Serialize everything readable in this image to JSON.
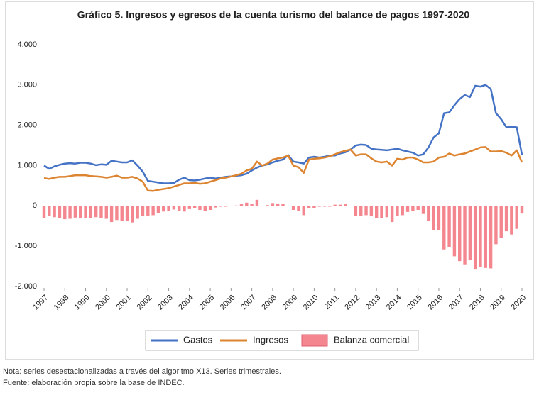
{
  "chart_data": {
    "type": "combo",
    "title": "Gráfico 5. Ingresos y egresos de la cuenta turismo del balance de pagos 1997-2020",
    "notes": [
      "Nota: series desestacionalizadas a través del algoritmo X13. Series trimestrales.",
      "Fuente: elaboración propia sobre la base de INDEC."
    ],
    "x": [
      1997,
      1997.25,
      1997.5,
      1997.75,
      1998,
      1998.25,
      1998.5,
      1998.75,
      1999,
      1999.25,
      1999.5,
      1999.75,
      2000,
      2000.25,
      2000.5,
      2000.75,
      2001,
      2001.25,
      2001.5,
      2001.75,
      2002,
      2002.25,
      2002.5,
      2002.75,
      2003,
      2003.25,
      2003.5,
      2003.75,
      2004,
      2004.25,
      2004.5,
      2004.75,
      2005,
      2005.25,
      2005.5,
      2005.75,
      2006,
      2006.25,
      2006.5,
      2006.75,
      2007,
      2007.25,
      2007.5,
      2007.75,
      2008,
      2008.25,
      2008.5,
      2008.75,
      2009,
      2009.25,
      2009.5,
      2009.75,
      2010,
      2010.25,
      2010.5,
      2010.75,
      2011,
      2011.25,
      2011.5,
      2011.75,
      2012,
      2012.25,
      2012.5,
      2012.75,
      2013,
      2013.25,
      2013.5,
      2013.75,
      2014,
      2014.25,
      2014.5,
      2014.75,
      2015,
      2015.25,
      2015.5,
      2015.75,
      2016,
      2016.25,
      2016.5,
      2016.75,
      2017,
      2017.25,
      2017.5,
      2017.75,
      2018,
      2018.25,
      2018.5,
      2018.75,
      2019,
      2019.25,
      2019.5,
      2019.75,
      2020
    ],
    "series": [
      {
        "name": "Gastos",
        "type": "line",
        "color": "#4472c4",
        "values": [
          1000,
          920,
          980,
          1020,
          1050,
          1060,
          1050,
          1070,
          1070,
          1050,
          1010,
          1030,
          1020,
          1120,
          1100,
          1080,
          1080,
          1130,
          1000,
          850,
          620,
          600,
          580,
          560,
          560,
          570,
          650,
          700,
          640,
          630,
          650,
          680,
          700,
          680,
          700,
          720,
          730,
          750,
          760,
          800,
          880,
          950,
          1000,
          1030,
          1080,
          1120,
          1150,
          1260,
          1100,
          1080,
          1050,
          1200,
          1220,
          1200,
          1220,
          1250,
          1250,
          1300,
          1330,
          1400,
          1500,
          1520,
          1510,
          1420,
          1400,
          1390,
          1380,
          1400,
          1420,
          1380,
          1350,
          1320,
          1250,
          1280,
          1450,
          1700,
          1800,
          2300,
          2320,
          2500,
          2650,
          2750,
          2700,
          2980,
          2960,
          3000,
          2900,
          2300,
          2150,
          1950,
          1960,
          1950,
          1270
        ]
      },
      {
        "name": "Ingresos",
        "type": "line",
        "color": "#dd8430",
        "values": [
          690,
          670,
          700,
          720,
          720,
          740,
          760,
          760,
          760,
          740,
          730,
          720,
          700,
          720,
          750,
          700,
          700,
          720,
          680,
          600,
          380,
          370,
          400,
          420,
          440,
          480,
          520,
          560,
          560,
          570,
          550,
          560,
          600,
          640,
          680,
          700,
          730,
          760,
          800,
          880,
          920,
          1100,
          1000,
          1050,
          1150,
          1180,
          1200,
          1250,
          1000,
          960,
          820,
          1150,
          1170,
          1180,
          1200,
          1230,
          1280,
          1330,
          1370,
          1400,
          1250,
          1280,
          1280,
          1180,
          1100,
          1080,
          1100,
          1000,
          1170,
          1150,
          1200,
          1200,
          1150,
          1080,
          1080,
          1100,
          1200,
          1220,
          1300,
          1250,
          1280,
          1300,
          1350,
          1400,
          1450,
          1460,
          1350,
          1350,
          1360,
          1320,
          1250,
          1380,
          1080
        ]
      },
      {
        "name": "Balanza comercial",
        "type": "bar",
        "color": "#f4868f",
        "values": [
          -310,
          -250,
          -280,
          -300,
          -330,
          -320,
          -290,
          -310,
          -310,
          -310,
          -280,
          -310,
          -320,
          -400,
          -350,
          -380,
          -380,
          -410,
          -320,
          -250,
          -240,
          -230,
          -180,
          -140,
          -120,
          -90,
          -130,
          -140,
          -80,
          -60,
          -100,
          -120,
          -100,
          -40,
          -20,
          -20,
          0,
          10,
          40,
          80,
          40,
          150,
          0,
          20,
          70,
          60,
          50,
          0,
          -100,
          -120,
          -230,
          -50,
          -50,
          -20,
          -20,
          -20,
          30,
          30,
          40,
          0,
          -250,
          -240,
          -230,
          -240,
          -300,
          -310,
          -280,
          -400,
          -250,
          -230,
          -150,
          -120,
          -100,
          -200,
          -370,
          -600,
          -600,
          -1080,
          -1020,
          -1250,
          -1370,
          -1450,
          -1350,
          -1580,
          -1510,
          -1540,
          -1550,
          -950,
          -790,
          -630,
          -710,
          -570,
          -190
        ]
      }
    ],
    "xlim": [
      1997,
      2020
    ],
    "xticks": [
      1997,
      1998,
      1999,
      2000,
      2001,
      2002,
      2003,
      2004,
      2005,
      2006,
      2007,
      2008,
      2009,
      2010,
      2011,
      2012,
      2013,
      2014,
      2015,
      2016,
      2017,
      2018,
      2019,
      2020
    ],
    "ylim": [
      -2000,
      4000
    ],
    "yticks": [
      {
        "value": -2000,
        "label": "-2.000"
      },
      {
        "value": -1000,
        "label": "-1.000"
      },
      0,
      {
        "value": 1000,
        "label": "1.000"
      },
      {
        "value": 2000,
        "label": "2.000"
      },
      {
        "value": 3000,
        "label": "3.000"
      },
      {
        "value": 4000,
        "label": "4.000"
      }
    ],
    "grid": false,
    "legend": "bottom"
  }
}
